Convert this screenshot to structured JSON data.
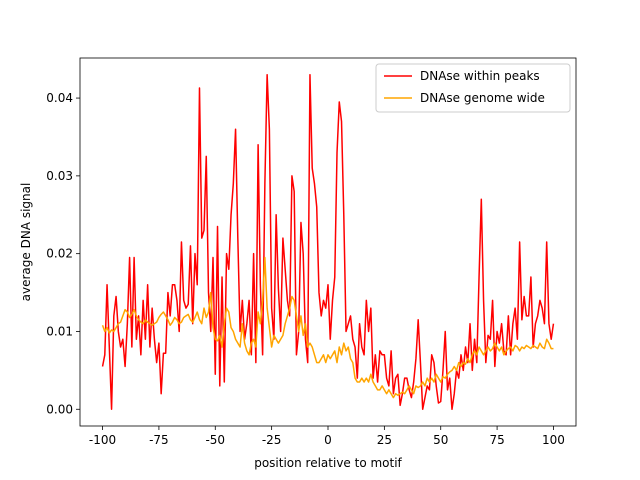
{
  "chart_data": {
    "type": "line",
    "xlabel": "position relative to motif",
    "ylabel": "average DNA signal",
    "x": [
      -100,
      -99,
      -98,
      -97,
      -96,
      -95,
      -94,
      -93,
      -92,
      -91,
      -90,
      -89,
      -88,
      -87,
      -86,
      -85,
      -84,
      -83,
      -82,
      -81,
      -80,
      -79,
      -78,
      -77,
      -76,
      -75,
      -74,
      -73,
      -72,
      -71,
      -70,
      -69,
      -68,
      -67,
      -66,
      -65,
      -64,
      -63,
      -62,
      -61,
      -60,
      -59,
      -58,
      -57,
      -56,
      -55,
      -54,
      -53,
      -52,
      -51,
      -50,
      -49,
      -48,
      -47,
      -46,
      -45,
      -44,
      -43,
      -42,
      -41,
      -40,
      -39,
      -38,
      -37,
      -36,
      -35,
      -34,
      -33,
      -32,
      -31,
      -30,
      -29,
      -28,
      -27,
      -26,
      -25,
      -24,
      -23,
      -22,
      -21,
      -20,
      -19,
      -18,
      -17,
      -16,
      -15,
      -14,
      -13,
      -12,
      -11,
      -10,
      -9,
      -8,
      -7,
      -6,
      -5,
      -4,
      -3,
      -2,
      -1,
      0,
      1,
      2,
      3,
      4,
      5,
      6,
      7,
      8,
      9,
      10,
      11,
      12,
      13,
      14,
      15,
      16,
      17,
      18,
      19,
      20,
      21,
      22,
      23,
      24,
      25,
      26,
      27,
      28,
      29,
      30,
      31,
      32,
      33,
      34,
      35,
      36,
      37,
      38,
      39,
      40,
      41,
      42,
      43,
      44,
      45,
      46,
      47,
      48,
      49,
      50,
      51,
      52,
      53,
      54,
      55,
      56,
      57,
      58,
      59,
      60,
      61,
      62,
      63,
      64,
      65,
      66,
      67,
      68,
      69,
      70,
      71,
      72,
      73,
      74,
      75,
      76,
      77,
      78,
      79,
      80,
      81,
      82,
      83,
      84,
      85,
      86,
      87,
      88,
      89,
      90,
      91,
      92,
      93,
      94,
      95,
      96,
      97,
      98,
      99,
      100
    ],
    "series": [
      {
        "name": "DNAse within peaks",
        "color": "#ff0000",
        "values": [
          0.0055,
          0.007,
          0.016,
          0.008,
          0.0,
          0.012,
          0.0145,
          0.01,
          0.008,
          0.009,
          0.0055,
          0.011,
          0.0195,
          0.008,
          0.0195,
          0.009,
          0.012,
          0.007,
          0.014,
          0.009,
          0.016,
          0.008,
          0.013,
          0.009,
          0.006,
          0.0085,
          0.002,
          0.0072,
          0.0072,
          0.015,
          0.012,
          0.016,
          0.016,
          0.014,
          0.01,
          0.0215,
          0.014,
          0.013,
          0.0135,
          0.021,
          0.011,
          0.02,
          0.016,
          0.0413,
          0.022,
          0.023,
          0.0325,
          0.015,
          0.01,
          0.0195,
          0.0045,
          0.0235,
          0.003,
          0.017,
          0.0035,
          0.02,
          0.018,
          0.025,
          0.029,
          0.036,
          0.022,
          0.01,
          0.014,
          0.009,
          0.011,
          0.014,
          0.007,
          0.02,
          0.006,
          0.034,
          0.016,
          0.007,
          0.029,
          0.043,
          0.036,
          0.013,
          0.009,
          0.025,
          0.0155,
          0.01,
          0.022,
          0.018,
          0.014,
          0.012,
          0.03,
          0.028,
          0.007,
          0.01,
          0.024,
          0.02,
          0.009,
          0.006,
          0.043,
          0.031,
          0.029,
          0.026,
          0.015,
          0.012,
          0.014,
          0.013,
          0.016,
          0.009,
          0.014,
          0.017,
          0.033,
          0.0395,
          0.037,
          0.025,
          0.01,
          0.011,
          0.012,
          0.009,
          0.008,
          0.004,
          0.011,
          0.008,
          0.007,
          0.014,
          0.01,
          0.013,
          0.004,
          0.007,
          0.0035,
          0.0075,
          0.007,
          0.007,
          0.004,
          0.003,
          0.0075,
          0.002,
          0.004,
          0.0045,
          0.0005,
          0.002,
          0.004,
          0.004,
          0.0025,
          0.0015,
          0.0035,
          0.0065,
          0.0115,
          0.006,
          0.0,
          0.0015,
          0.003,
          0.0025,
          0.007,
          0.006,
          0.003,
          0.0008,
          0.001,
          0.005,
          0.01,
          0.0025,
          0.004,
          0.0,
          0.002,
          0.005,
          0.004,
          0.007,
          0.005,
          0.008,
          0.006,
          0.011,
          0.005,
          0.009,
          0.006,
          0.017,
          0.027,
          0.014,
          0.006,
          0.0095,
          0.009,
          0.014,
          0.0055,
          0.01,
          0.0085,
          0.011,
          0.0075,
          0.007,
          0.012,
          0.007,
          0.011,
          0.013,
          0.009,
          0.0215,
          0.0115,
          0.0145,
          0.012,
          0.012,
          0.017,
          0.008,
          0.011,
          0.012,
          0.014,
          0.013,
          0.011,
          0.0215,
          0.011,
          0.009,
          0.011
        ]
      },
      {
        "name": "DNAse genome wide",
        "color": "#ffa500",
        "values": [
          0.0108,
          0.01,
          0.0105,
          0.0098,
          0.0102,
          0.01,
          0.0105,
          0.011,
          0.0112,
          0.012,
          0.0128,
          0.0125,
          0.0118,
          0.0122,
          0.0128,
          0.012,
          0.0115,
          0.0112,
          0.011,
          0.0115,
          0.0112,
          0.011,
          0.0108,
          0.011,
          0.0112,
          0.0118,
          0.0122,
          0.0125,
          0.012,
          0.0115,
          0.0108,
          0.0112,
          0.0118,
          0.0115,
          0.011,
          0.0112,
          0.0118,
          0.012,
          0.0122,
          0.0115,
          0.0112,
          0.0118,
          0.0125,
          0.0115,
          0.011,
          0.013,
          0.0118,
          0.0125,
          0.015,
          0.0105,
          0.009,
          0.0088,
          0.0095,
          0.008,
          0.011,
          0.013,
          0.0125,
          0.0105,
          0.01,
          0.009,
          0.0085,
          0.008,
          0.011,
          0.0085,
          0.0075,
          0.007,
          0.0085,
          0.009,
          0.008,
          0.0125,
          0.011,
          0.014,
          0.0195,
          0.013,
          0.0105,
          0.008,
          0.0095,
          0.009,
          0.0085,
          0.009,
          0.0095,
          0.011,
          0.012,
          0.013,
          0.0145,
          0.014,
          0.012,
          0.01,
          0.012,
          0.0095,
          0.011,
          0.008,
          0.0085,
          0.008,
          0.007,
          0.006,
          0.006,
          0.0065,
          0.007,
          0.006,
          0.007,
          0.0065,
          0.007,
          0.0075,
          0.006,
          0.008,
          0.007,
          0.0085,
          0.0075,
          0.008,
          0.0065,
          0.006,
          0.004,
          0.0035,
          0.0035,
          0.004,
          0.0035,
          0.004,
          0.0035,
          0.0045,
          0.0035,
          0.003,
          0.0025,
          0.0025,
          0.003,
          0.0025,
          0.002,
          0.0025,
          0.002,
          0.0015,
          0.002,
          0.0018,
          0.002,
          0.0022,
          0.002,
          0.0025,
          0.003,
          0.0025,
          0.002,
          0.003,
          0.0028,
          0.003,
          0.0035,
          0.003,
          0.004,
          0.0035,
          0.004,
          0.0035,
          0.0045,
          0.004,
          0.0035,
          0.0042,
          0.004,
          0.0045,
          0.0048,
          0.005,
          0.0055,
          0.005,
          0.006,
          0.0055,
          0.006,
          0.0058,
          0.0065,
          0.006,
          0.007,
          0.0075,
          0.007,
          0.008,
          0.0075,
          0.007,
          0.0075,
          0.008,
          0.0075,
          0.0078,
          0.0085,
          0.008,
          0.0075,
          0.008,
          0.007,
          0.0075,
          0.0078,
          0.008,
          0.0075,
          0.0082,
          0.008,
          0.0075,
          0.008,
          0.0078,
          0.0082,
          0.008,
          0.0078,
          0.0082,
          0.008,
          0.0078,
          0.0085,
          0.008,
          0.0078,
          0.009,
          0.0085,
          0.0078,
          0.0078
        ]
      }
    ],
    "xlim": [
      -110,
      110
    ],
    "xticks": [
      -100,
      -75,
      -50,
      -25,
      0,
      25,
      50,
      75,
      100
    ],
    "ylim": [
      -0.00215,
      0.04515
    ],
    "yticks": [
      {
        "value": 0,
        "label": "0.00"
      },
      0.01,
      0.02,
      0.03,
      0.04
    ],
    "legend": "upper right",
    "grid": false
  }
}
